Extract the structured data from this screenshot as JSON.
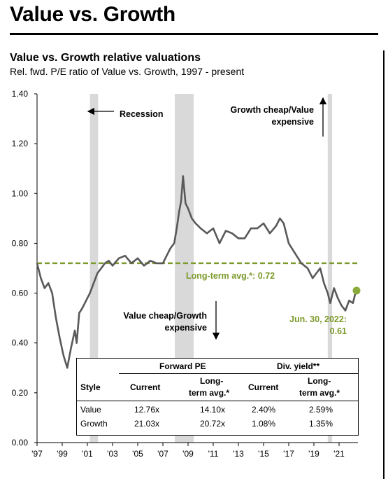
{
  "header": {
    "title": "Value vs. Growth",
    "chart_title": "Value vs. Growth relative valuations",
    "chart_subtitle": "Rel. fwd. P/E ratio of Value vs. Growth, 1997 - present"
  },
  "annotations": {
    "recession": "Recession",
    "growth_cheap_1": "Growth cheap/Value",
    "growth_cheap_2": "expensive",
    "value_cheap_1": "Value cheap/Growth",
    "value_cheap_2": "expensive",
    "longterm_avg": "Long-term avg.*: 0.72",
    "current_1": "Jun. 30, 2022:",
    "current_2": "0.61"
  },
  "colors": {
    "line": "#595959",
    "avg_line": "#7d9a2c",
    "recession": "#d9d9d9",
    "point": "#8aab3c"
  },
  "chart_data": {
    "type": "line",
    "title": "Value vs. Growth relative valuations",
    "subtitle": "Rel. fwd. P/E ratio of Value vs. Growth, 1997 - present",
    "ylim": [
      0.0,
      1.4
    ],
    "yticks": [
      "0.00",
      "0.20",
      "0.40",
      "0.60",
      "0.80",
      "1.00",
      "1.20",
      "1.40"
    ],
    "xlim": [
      1997,
      2022.5
    ],
    "xtick_values": [
      1997,
      1999,
      2001,
      2003,
      2005,
      2007,
      2009,
      2011,
      2013,
      2015,
      2017,
      2019,
      2021
    ],
    "xtick_labels": [
      "'97",
      "'99",
      "'01",
      "'03",
      "'05",
      "'07",
      "'09",
      "'11",
      "'13",
      "'15",
      "'17",
      "'19",
      "'21"
    ],
    "long_term_avg": 0.72,
    "recessions": [
      [
        2001.2,
        2001.85
      ],
      [
        2007.95,
        2009.45
      ],
      [
        2020.1,
        2020.45
      ]
    ],
    "current_point": {
      "x": 2022.5,
      "y": 0.61
    },
    "series": [
      {
        "x": [
          1997.0,
          1997.3,
          1997.6,
          1997.9,
          1998.2,
          1998.5,
          1998.8,
          1999.1,
          1999.4,
          1999.7,
          2000.0,
          2000.15,
          2000.35,
          2000.6,
          2000.9,
          2001.2,
          2001.5,
          2001.8,
          2002.1,
          2002.4,
          2002.7,
          2003.0,
          2003.5,
          2004.0,
          2004.5,
          2005.0,
          2005.5,
          2006.0,
          2006.5,
          2007.0,
          2007.3,
          2007.6,
          2007.9,
          2008.1,
          2008.3,
          2008.45,
          2008.6,
          2008.8,
          2009.0,
          2009.3,
          2009.6,
          2010.0,
          2010.5,
          2011.0,
          2011.5,
          2012.0,
          2012.5,
          2013.0,
          2013.5,
          2014.0,
          2014.5,
          2015.0,
          2015.5,
          2016.0,
          2016.3,
          2016.6,
          2017.0,
          2017.5,
          2018.0,
          2018.5,
          2018.9,
          2019.2,
          2019.5,
          2019.8,
          2020.1,
          2020.3,
          2020.6,
          2020.9,
          2021.2,
          2021.5,
          2021.8,
          2022.1,
          2022.3,
          2022.5
        ],
        "y": [
          0.72,
          0.66,
          0.62,
          0.64,
          0.6,
          0.5,
          0.42,
          0.35,
          0.3,
          0.38,
          0.45,
          0.4,
          0.52,
          0.54,
          0.57,
          0.6,
          0.64,
          0.68,
          0.7,
          0.72,
          0.73,
          0.71,
          0.74,
          0.75,
          0.72,
          0.74,
          0.71,
          0.73,
          0.72,
          0.72,
          0.75,
          0.78,
          0.8,
          0.86,
          0.93,
          0.97,
          1.07,
          0.96,
          0.94,
          0.9,
          0.88,
          0.86,
          0.84,
          0.86,
          0.8,
          0.85,
          0.84,
          0.82,
          0.82,
          0.86,
          0.86,
          0.88,
          0.84,
          0.87,
          0.9,
          0.88,
          0.8,
          0.76,
          0.72,
          0.7,
          0.66,
          0.68,
          0.7,
          0.64,
          0.6,
          0.56,
          0.62,
          0.58,
          0.55,
          0.53,
          0.57,
          0.56,
          0.6,
          0.61
        ]
      }
    ]
  },
  "table": {
    "group_headers": [
      "Forward PE",
      "Div. yield**"
    ],
    "col_headers": [
      "Style",
      "Current",
      "Long-",
      "term avg.*",
      "Current",
      "Long-",
      "term avg.*"
    ],
    "rows": [
      {
        "style": "Value",
        "pe_current": "12.76x",
        "pe_avg": "14.10x",
        "dy_current": "2.40%",
        "dy_avg": "2.59%"
      },
      {
        "style": "Growth",
        "pe_current": "21.03x",
        "pe_avg": "20.72x",
        "dy_current": "1.08%",
        "dy_avg": "1.35%"
      }
    ]
  }
}
